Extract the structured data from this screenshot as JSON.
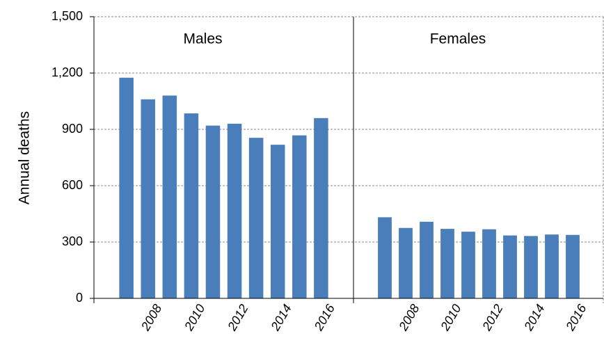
{
  "chart_data": {
    "type": "bar",
    "y_label": "Annual deaths",
    "categories": [
      null,
      "2008",
      null,
      "2010",
      null,
      "2012",
      null,
      "2014",
      null,
      "2016"
    ],
    "ylim": [
      0,
      1500
    ],
    "yticks": [
      0,
      300,
      600,
      900,
      {
        "value": 1200,
        "label": "1,200"
      },
      {
        "value": 1500,
        "label": "1,500"
      }
    ],
    "grid": true,
    "color": "#4a7ebb",
    "panels": [
      {
        "title": "Males",
        "values": [
          1175,
          1060,
          1080,
          985,
          920,
          930,
          855,
          818,
          868,
          960
        ]
      },
      {
        "title": "Females",
        "values": [
          432,
          375,
          408,
          370,
          355,
          368,
          335,
          332,
          340,
          338
        ]
      }
    ]
  }
}
